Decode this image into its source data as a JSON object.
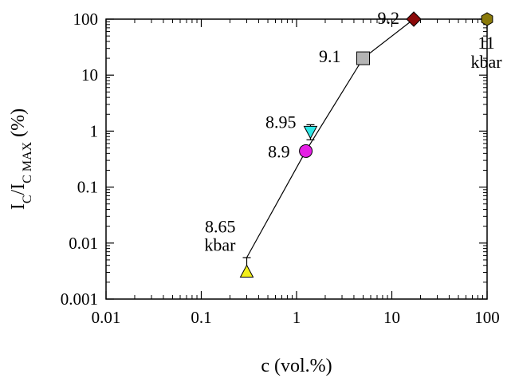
{
  "chart_data": {
    "type": "scatter",
    "xlabel": "c (vol.%)",
    "ylabel": {
      "main": "I",
      "sub1": "C",
      "mid": "/I",
      "sub2": "C MAX",
      "tail": " (%)"
    },
    "xscale": "log",
    "yscale": "log",
    "xlim": [
      0.01,
      100
    ],
    "ylim": [
      0.001,
      100
    ],
    "x_ticks": [
      {
        "value": 0.01,
        "label": "0.01"
      },
      {
        "value": 0.1,
        "label": "0.1"
      },
      {
        "value": 1,
        "label": "1"
      },
      {
        "value": 10,
        "label": "10"
      },
      {
        "value": 100,
        "label": "100"
      }
    ],
    "y_ticks": [
      {
        "value": 0.001,
        "label": "0.001"
      },
      {
        "value": 0.01,
        "label": "0.01"
      },
      {
        "value": 0.1,
        "label": "0.1"
      },
      {
        "value": 1,
        "label": "1"
      },
      {
        "value": 10,
        "label": "10"
      },
      {
        "value": 100,
        "label": "100"
      }
    ],
    "points": [
      {
        "name": "8.65 kbar",
        "x": 0.3,
        "y": 0.003,
        "marker": "triangle-up",
        "color": "#f2ee1a",
        "err_up": 0.0055
      },
      {
        "name": "8.9",
        "x": 1.25,
        "y": 0.44,
        "marker": "circle",
        "color": "#e51fe5"
      },
      {
        "name": "8.95",
        "x": 1.4,
        "y": 1.0,
        "marker": "triangle-down",
        "color": "#2ee8e8",
        "err_up": 1.3,
        "err_down": 0.7
      },
      {
        "name": "9.1",
        "x": 5,
        "y": 20,
        "marker": "square",
        "color": "#b4b4b4"
      },
      {
        "name": "9.2",
        "x": 17,
        "y": 100,
        "marker": "diamond",
        "color": "#8b0a0a"
      },
      {
        "name": "11 kbar",
        "x": 100,
        "y": 100,
        "marker": "hexagon",
        "color": "#8a7a0a"
      }
    ],
    "fit_line": [
      {
        "x": 0.3,
        "y": 0.0055
      },
      {
        "x": 1.25,
        "y": 0.44
      },
      {
        "x": 5,
        "y": 20
      },
      {
        "x": 17,
        "y": 100
      }
    ],
    "annotations": [
      {
        "lines": [
          "8.65",
          "kbar"
        ],
        "x": 0.3,
        "y": 0.003,
        "anchor": "end"
      },
      {
        "lines": [
          "8.9"
        ],
        "x": 1.25,
        "y": 0.44,
        "anchor": "end"
      },
      {
        "lines": [
          "8.95"
        ],
        "x": 1.4,
        "y": 1.0,
        "anchor": "end"
      },
      {
        "lines": [
          "9.1"
        ],
        "x": 5,
        "y": 20,
        "anchor": "end"
      },
      {
        "lines": [
          "9.2"
        ],
        "x": 17,
        "y": 100,
        "anchor": "end"
      },
      {
        "lines": [
          "11",
          "kbar"
        ],
        "x": 100,
        "y": 100,
        "anchor": "middle"
      }
    ],
    "grid": false,
    "legend": "none"
  }
}
